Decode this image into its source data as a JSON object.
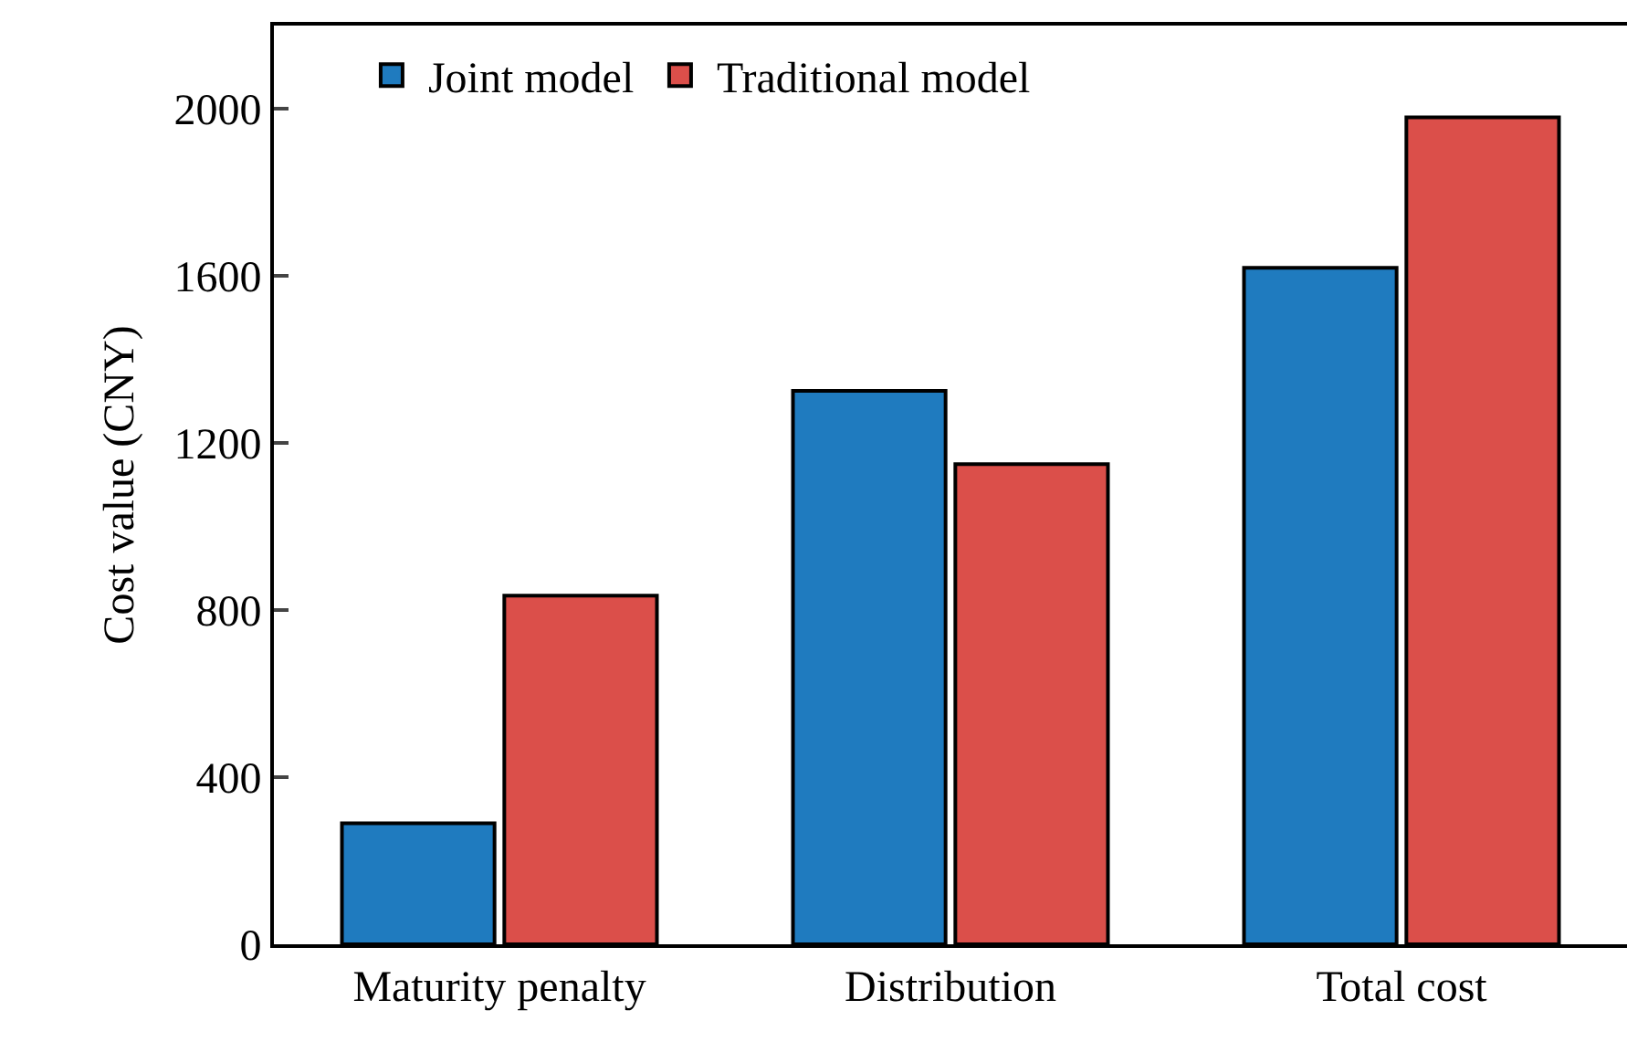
{
  "chart_data": {
    "type": "bar",
    "ylabel": "Cost value (CNY)",
    "categories": [
      "Maturity penalty",
      "Distribution",
      "Total cost"
    ],
    "series": [
      {
        "name": "Joint model",
        "color": "#1f7bbf",
        "values": [
          290,
          1325,
          1620
        ]
      },
      {
        "name": "Traditional model",
        "color": "#db4f4a",
        "values": [
          835,
          1150,
          1980
        ]
      }
    ],
    "ylim": [
      0,
      2200
    ],
    "yticks": [
      0,
      400,
      800,
      1200,
      1600,
      2000
    ],
    "legend": "top left"
  }
}
